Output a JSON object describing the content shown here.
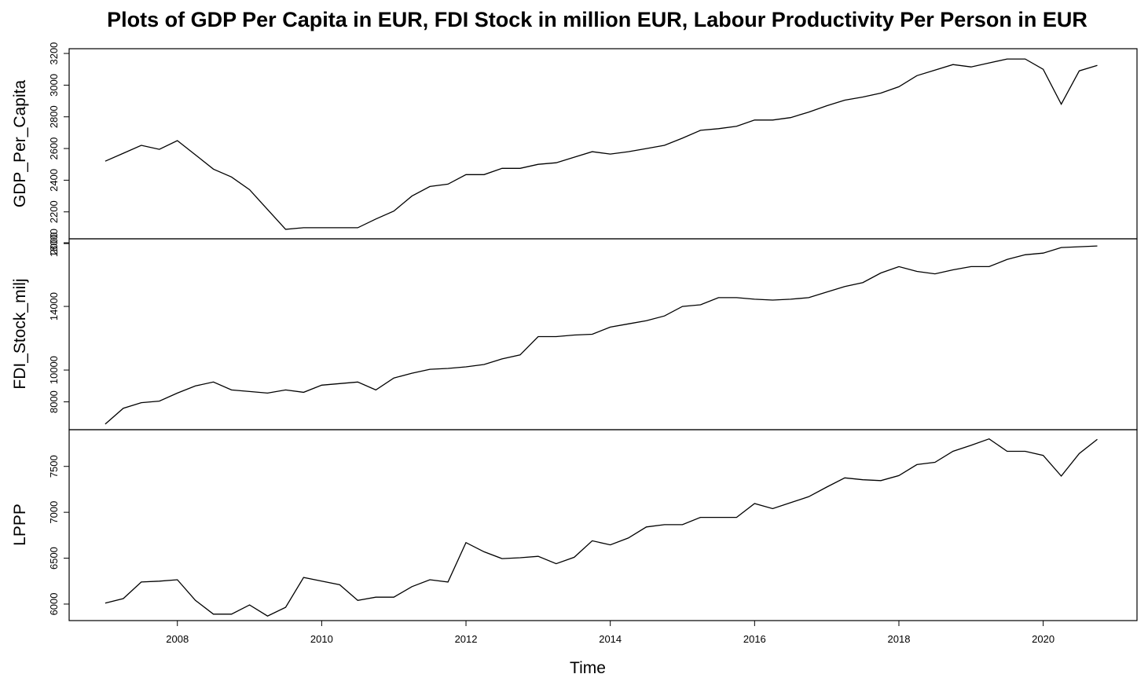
{
  "chart_data": {
    "type": "line",
    "title": "Plots of GDP Per Capita in EUR, FDI Stock in million EUR, Labour Productivity Per Person in EUR",
    "xlabel": "Time",
    "xlim": [
      2006.5,
      2021.3
    ],
    "x_ticks": [
      "2008",
      "2010",
      "2012",
      "2014",
      "2016",
      "2018",
      "2020"
    ],
    "x": [
      2007.0,
      2007.25,
      2007.5,
      2007.75,
      2008.0,
      2008.25,
      2008.5,
      2008.75,
      2009.0,
      2009.25,
      2009.5,
      2009.75,
      2010.0,
      2010.25,
      2010.5,
      2010.75,
      2011.0,
      2011.25,
      2011.5,
      2011.75,
      2012.0,
      2012.25,
      2012.5,
      2012.75,
      2013.0,
      2013.25,
      2013.5,
      2013.75,
      2014.0,
      2014.25,
      2014.5,
      2014.75,
      2015.0,
      2015.25,
      2015.5,
      2015.75,
      2016.0,
      2016.25,
      2016.5,
      2016.75,
      2017.0,
      2017.25,
      2017.5,
      2017.75,
      2018.0,
      2018.25,
      2018.5,
      2018.75,
      2019.0,
      2019.25,
      2019.5,
      2019.75,
      2020.0,
      2020.25,
      2020.5,
      2020.75
    ],
    "panels": [
      {
        "name": "GDP_Per_Capita",
        "ylim": [
          2030,
          3230
        ],
        "y_ticks": [
          "2000",
          "2200",
          "2400",
          "2600",
          "2800",
          "3000",
          "3200"
        ],
        "values": [
          2520,
          2570,
          2620,
          2595,
          2650,
          2560,
          2470,
          2420,
          2340,
          2215,
          2090,
          2100,
          2100,
          2100,
          2100,
          2155,
          2205,
          2300,
          2360,
          2375,
          2435,
          2435,
          2475,
          2475,
          2500,
          2510,
          2545,
          2580,
          2565,
          2580,
          2600,
          2620,
          2665,
          2715,
          2725,
          2740,
          2780,
          2780,
          2795,
          2830,
          2870,
          2905,
          2925,
          2950,
          2990,
          3060,
          3095,
          3130,
          3115,
          3140,
          3165,
          3165,
          3100,
          2880,
          3090,
          3125
        ]
      },
      {
        "name": "FDI_Stock_milj",
        "ylim": [
          6250,
          18250
        ],
        "y_ticks": [
          "8000",
          "10000",
          "14000",
          "18000"
        ],
        "values": [
          6600,
          7600,
          7950,
          8050,
          8550,
          9000,
          9250,
          8750,
          8650,
          8550,
          8750,
          8600,
          9050,
          9150,
          9250,
          8750,
          9500,
          9800,
          10050,
          10100,
          10200,
          10350,
          10700,
          10950,
          12100,
          12100,
          12200,
          12250,
          12700,
          12900,
          13100,
          13400,
          14000,
          14100,
          14550,
          14550,
          14450,
          14400,
          14450,
          14550,
          14900,
          15250,
          15500,
          16100,
          16500,
          16200,
          16050,
          16300,
          16500,
          16500,
          16950,
          17250,
          17350,
          17700,
          17750,
          17800
        ]
      },
      {
        "name": "LPPP",
        "ylim": [
          5820,
          7900
        ],
        "y_ticks": [
          "6000",
          "6500",
          "7000",
          "7500"
        ],
        "values": [
          6010,
          6060,
          6240,
          6250,
          6265,
          6040,
          5890,
          5890,
          5990,
          5870,
          5965,
          6290,
          6250,
          6210,
          6040,
          6075,
          6075,
          6190,
          6265,
          6240,
          6670,
          6570,
          6495,
          6505,
          6520,
          6440,
          6510,
          6690,
          6645,
          6720,
          6840,
          6865,
          6865,
          6945,
          6945,
          6945,
          7095,
          7040,
          7105,
          7170,
          7275,
          7375,
          7355,
          7345,
          7400,
          7520,
          7545,
          7665,
          7730,
          7800,
          7665,
          7665,
          7620,
          7395,
          7640,
          7795
        ]
      }
    ]
  }
}
